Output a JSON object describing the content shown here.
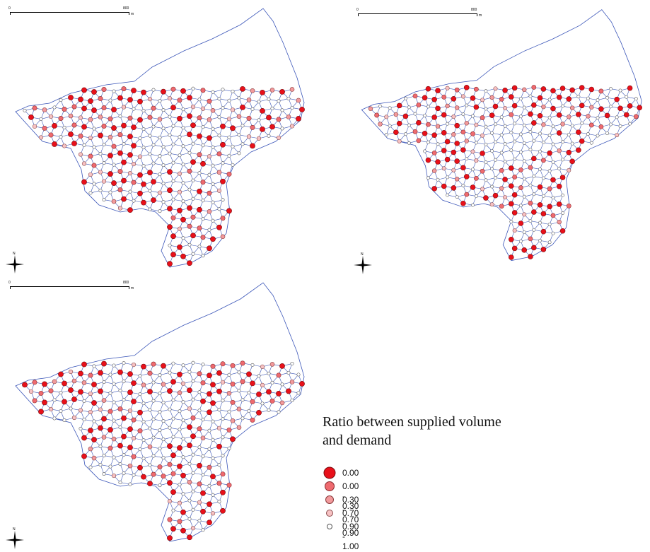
{
  "map": {
    "panels": [
      {
        "id": "panel-1",
        "variant": 0
      },
      {
        "id": "panel-2",
        "variant": 1
      },
      {
        "id": "panel-3",
        "variant": 2
      }
    ],
    "scalebar": {
      "start_label": "0",
      "end_label": "800",
      "unit": "m"
    },
    "north_arrow": {
      "label": "N"
    },
    "network_line_color": "#3a55b8"
  },
  "legend": {
    "title": "Ratio between supplied volume and demand",
    "classes": [
      {
        "label": "0.00",
        "fill": "#e8101a",
        "stroke": "#7a0d10"
      },
      {
        "label": "0.00 - 0.30",
        "fill": "#ee6a6f",
        "stroke": "#8a2a2e"
      },
      {
        "label": "0.30 - 0.70",
        "fill": "#f29a9c",
        "stroke": "#8a3a3c"
      },
      {
        "label": "0.70 - 0.90",
        "fill": "#f7c2c3",
        "stroke": "#8a4a4c"
      },
      {
        "label": "0.90 - 1.00",
        "fill": "#ffffff",
        "stroke": "#555555"
      }
    ]
  }
}
